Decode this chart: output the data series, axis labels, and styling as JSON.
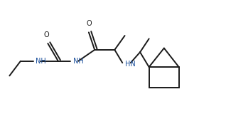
{
  "bg_color": "#ffffff",
  "line_color": "#1a1a1a",
  "text_color": "#1a4f9c",
  "bond_lw": 1.4,
  "font_size": 7.0,
  "fig_width": 3.18,
  "fig_height": 1.6,
  "dpi": 100,
  "xlim": [
    0,
    9.5
  ],
  "ylim": [
    0,
    4.75
  ]
}
